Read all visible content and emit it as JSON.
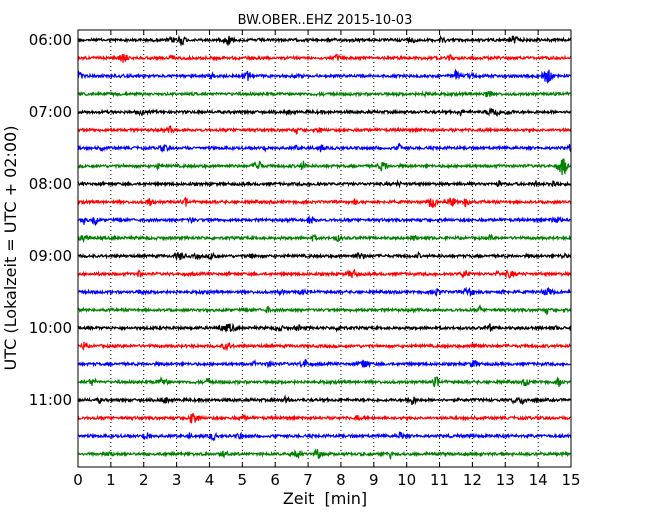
{
  "chart_data": {
    "type": "line",
    "title": "BW.OBER..EHZ 2015-10-03",
    "xlabel": "Zeit  [min]",
    "ylabel": "UTC (Lokalzeit = UTC + 02:00)",
    "xlim": [
      0,
      15
    ],
    "x_ticks": [
      0,
      1,
      2,
      3,
      4,
      5,
      6,
      7,
      8,
      9,
      10,
      11,
      12,
      13,
      14,
      15
    ],
    "x_tick_labels": [
      "0",
      "1",
      "2",
      "3",
      "4",
      "5",
      "6",
      "7",
      "8",
      "9",
      "10",
      "11",
      "12",
      "13",
      "14",
      "15"
    ],
    "y_tick_labels": [
      "06:00",
      "07:00",
      "08:00",
      "09:00",
      "10:00",
      "11:00"
    ],
    "y_tick_rows": [
      0,
      4,
      8,
      12,
      16,
      20
    ],
    "trace_interval_min": 15,
    "traces": [
      {
        "start": "06:00",
        "color": "#000000"
      },
      {
        "start": "06:15",
        "color": "#ff0000"
      },
      {
        "start": "06:30",
        "color": "#0000ff"
      },
      {
        "start": "06:45",
        "color": "#008000"
      },
      {
        "start": "07:00",
        "color": "#000000"
      },
      {
        "start": "07:15",
        "color": "#ff0000"
      },
      {
        "start": "07:30",
        "color": "#0000ff"
      },
      {
        "start": "07:45",
        "color": "#008000"
      },
      {
        "start": "08:00",
        "color": "#000000"
      },
      {
        "start": "08:15",
        "color": "#ff0000"
      },
      {
        "start": "08:30",
        "color": "#0000ff"
      },
      {
        "start": "08:45",
        "color": "#008000"
      },
      {
        "start": "09:00",
        "color": "#000000"
      },
      {
        "start": "09:15",
        "color": "#ff0000"
      },
      {
        "start": "09:30",
        "color": "#0000ff"
      },
      {
        "start": "09:45",
        "color": "#008000"
      },
      {
        "start": "10:00",
        "color": "#000000"
      },
      {
        "start": "10:15",
        "color": "#ff0000"
      },
      {
        "start": "10:30",
        "color": "#0000ff"
      },
      {
        "start": "10:45",
        "color": "#008000"
      },
      {
        "start": "11:00",
        "color": "#000000"
      },
      {
        "start": "11:15",
        "color": "#ff0000"
      },
      {
        "start": "11:30",
        "color": "#0000ff"
      },
      {
        "start": "11:45",
        "color": "#008000"
      }
    ],
    "grid": "vertical dotted",
    "legend": "none"
  }
}
